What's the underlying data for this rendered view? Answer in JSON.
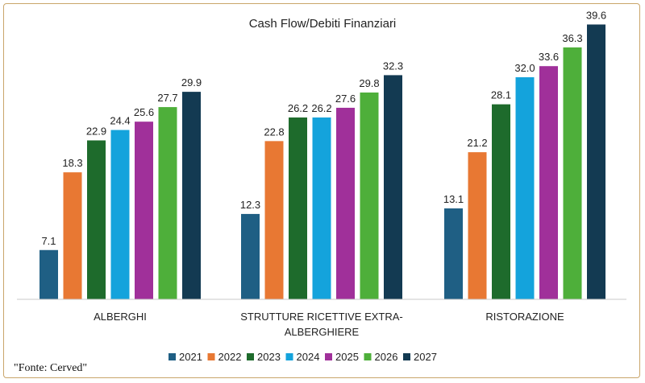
{
  "chart_data": {
    "type": "bar",
    "title": "Cash Flow/Debiti Finanziari",
    "categories": [
      [
        "ALBERGHI"
      ],
      [
        "STRUTTURE RICETTIVE EXTRA-",
        "ALBERGHIERE"
      ],
      [
        "RISTORAZIONE"
      ]
    ],
    "series": [
      {
        "name": "2021",
        "color": "#1f5f84",
        "values": [
          7.1,
          12.3,
          13.1
        ]
      },
      {
        "name": "2022",
        "color": "#e87833",
        "values": [
          18.3,
          22.8,
          21.2
        ]
      },
      {
        "name": "2023",
        "color": "#1e6b2c",
        "values": [
          22.9,
          26.2,
          28.1
        ]
      },
      {
        "name": "2024",
        "color": "#14a3dc",
        "values": [
          24.4,
          26.2,
          32.0
        ]
      },
      {
        "name": "2025",
        "color": "#a0309a",
        "values": [
          25.6,
          27.6,
          33.6
        ]
      },
      {
        "name": "2026",
        "color": "#4eaf3a",
        "values": [
          27.7,
          29.8,
          36.3
        ]
      },
      {
        "name": "2027",
        "color": "#133a52",
        "values": [
          29.9,
          32.3,
          39.6
        ]
      }
    ],
    "xlabel": "",
    "ylabel": "",
    "ylim": [
      0,
      40
    ],
    "grid": false,
    "legend": "bottom"
  },
  "source": "\"Fonte: Cerved\""
}
